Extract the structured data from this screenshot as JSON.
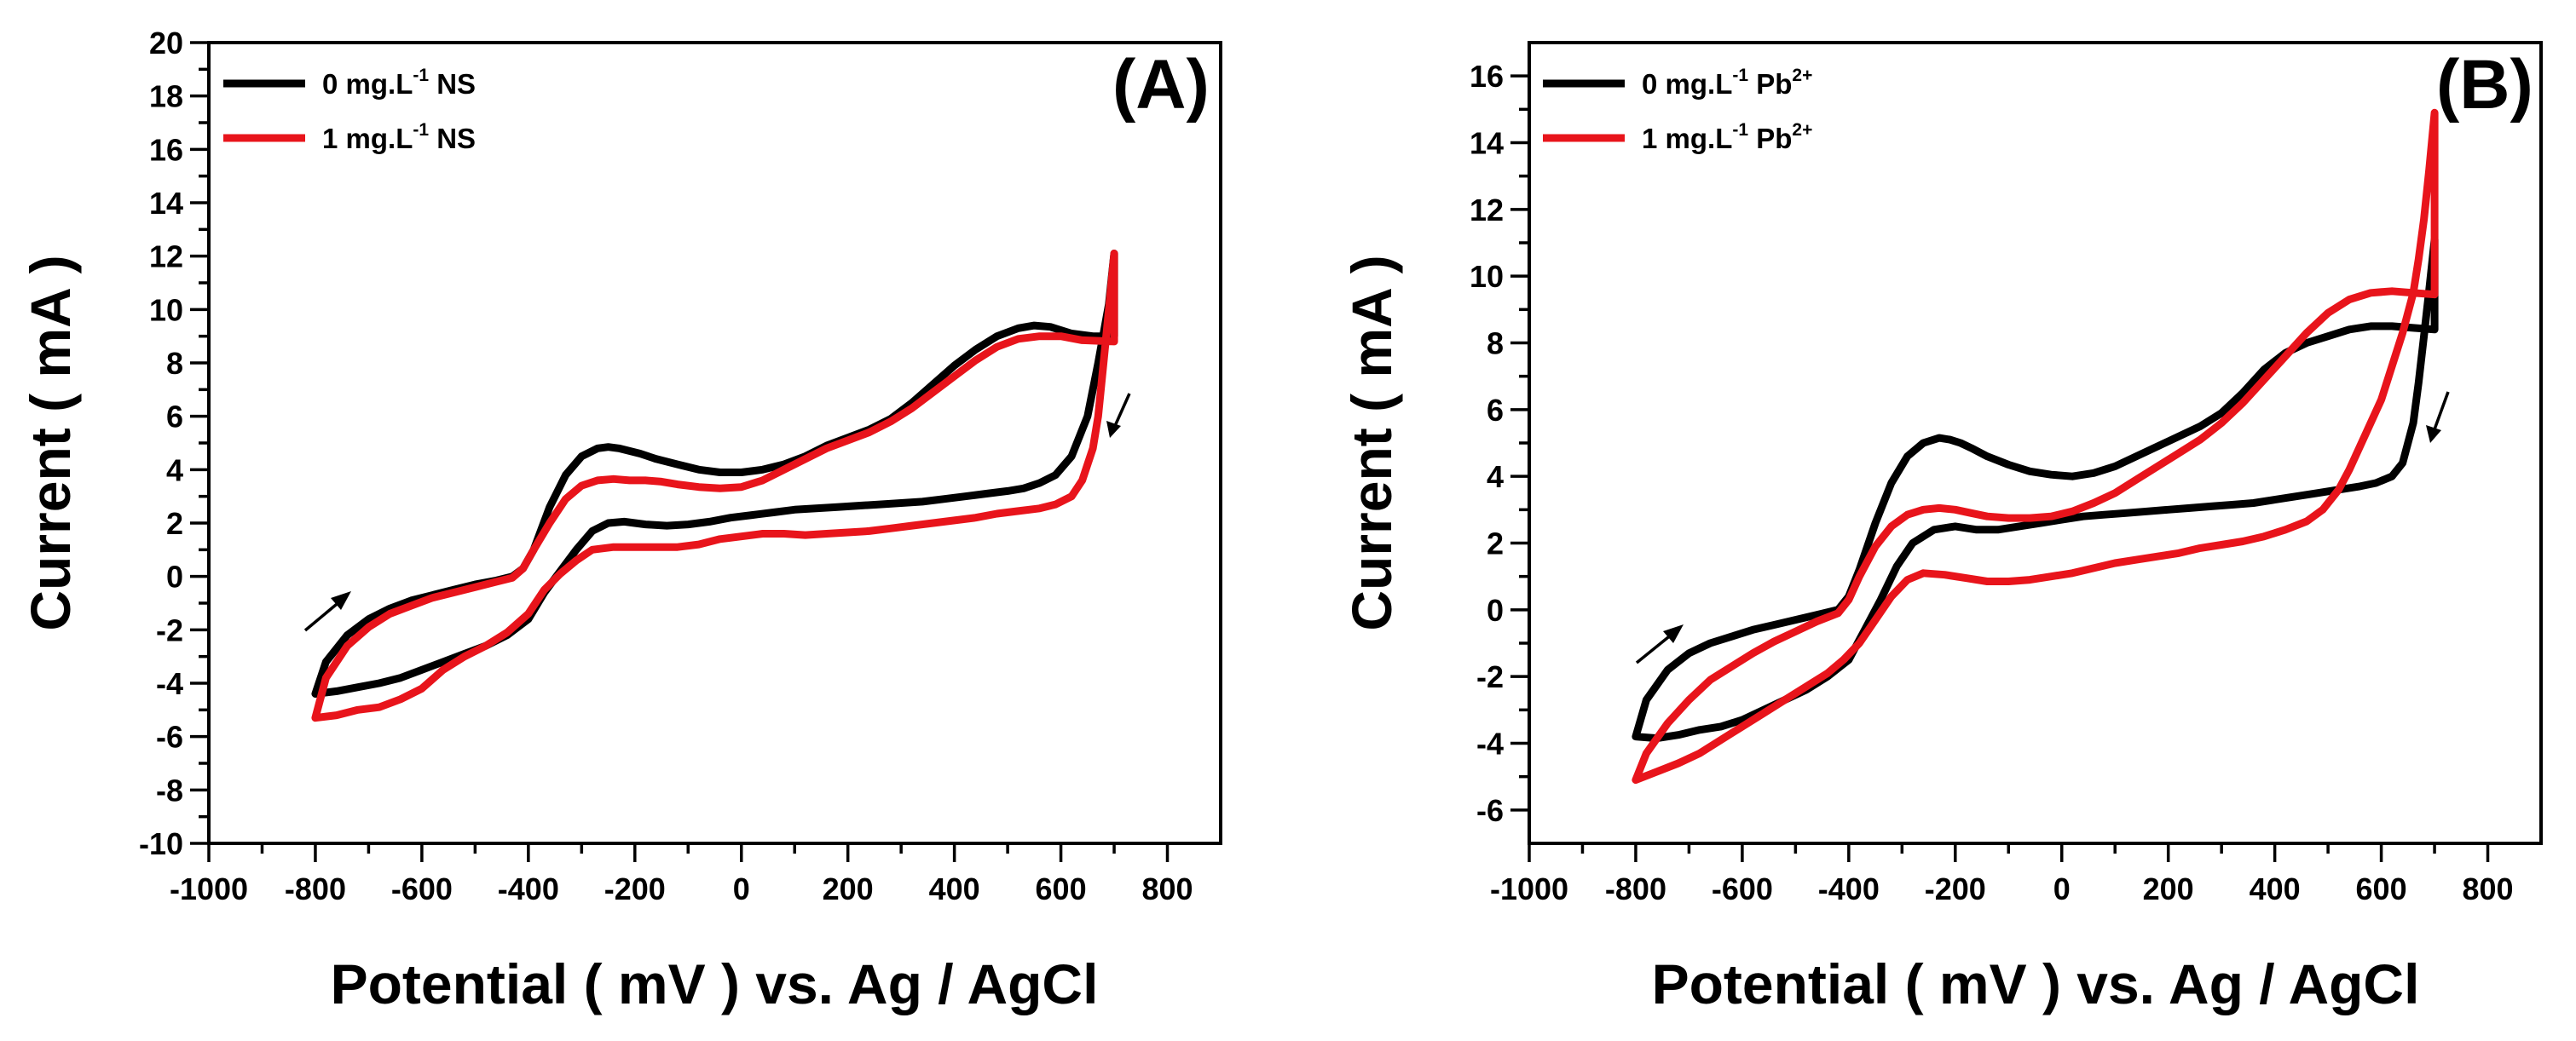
{
  "colors": {
    "series_0": "#000000",
    "series_1": "#e8141b"
  },
  "chart_data": [
    {
      "type": "line",
      "panel_label": "(A)",
      "xlabel": "Potential ( mV ) vs. Ag / AgCl",
      "ylabel": "Current ( mA )",
      "xlim": [
        -1000,
        900
      ],
      "ylim": [
        -10,
        20
      ],
      "xticks": [
        -1000,
        -800,
        -600,
        -400,
        -200,
        0,
        200,
        400,
        600,
        800
      ],
      "yticks": [
        -10,
        -8,
        -6,
        -4,
        -2,
        0,
        2,
        4,
        6,
        8,
        10,
        12,
        14,
        16,
        18,
        20
      ],
      "legend_position": "top-left",
      "series": [
        {
          "name": "0 mg.L-1 NS",
          "legend": {
            "prefix": "0  mg.L",
            "sup": "-1",
            "suffix": " NS"
          },
          "color": "#000000",
          "x": [
            -800,
            -780,
            -740,
            -700,
            -660,
            -620,
            -580,
            -540,
            -500,
            -460,
            -430,
            -410,
            -390,
            -360,
            -330,
            -300,
            -270,
            -250,
            -230,
            -210,
            -190,
            -160,
            -120,
            -80,
            -40,
            0,
            40,
            80,
            120,
            160,
            200,
            240,
            280,
            320,
            360,
            400,
            440,
            480,
            520,
            550,
            580,
            620,
            660,
            700,
            700,
            690,
            670,
            650,
            620,
            590,
            560,
            530,
            500,
            460,
            420,
            380,
            340,
            300,
            260,
            220,
            180,
            140,
            100,
            60,
            20,
            -20,
            -60,
            -100,
            -140,
            -180,
            -220,
            -250,
            -280,
            -310,
            -340,
            -370,
            -400,
            -440,
            -480,
            -520,
            -560,
            -600,
            -640,
            -680,
            -720,
            -760,
            -800
          ],
          "y": [
            -4.4,
            -3.2,
            -2.2,
            -1.6,
            -1.2,
            -0.9,
            -0.7,
            -0.5,
            -0.3,
            -0.15,
            0.0,
            0.3,
            1.0,
            2.6,
            3.8,
            4.5,
            4.8,
            4.85,
            4.8,
            4.7,
            4.6,
            4.4,
            4.2,
            4.0,
            3.9,
            3.9,
            4.0,
            4.2,
            4.5,
            4.9,
            5.2,
            5.5,
            5.9,
            6.5,
            7.2,
            7.9,
            8.5,
            9.0,
            9.3,
            9.4,
            9.35,
            9.1,
            9.0,
            9.0,
            12.1,
            10.2,
            8.0,
            6.0,
            4.5,
            3.8,
            3.5,
            3.3,
            3.2,
            3.1,
            3.0,
            2.9,
            2.8,
            2.75,
            2.7,
            2.65,
            2.6,
            2.55,
            2.5,
            2.4,
            2.3,
            2.2,
            2.05,
            1.95,
            1.9,
            1.95,
            2.05,
            2.0,
            1.7,
            1.0,
            0.2,
            -0.6,
            -1.6,
            -2.2,
            -2.6,
            -2.9,
            -3.2,
            -3.5,
            -3.8,
            -4.0,
            -4.15,
            -4.3,
            -4.4
          ]
        },
        {
          "name": "1 mg.L-1 NS",
          "legend": {
            "prefix": "1 mg.L",
            "sup": "-1",
            "suffix": " NS"
          },
          "color": "#e8141b",
          "x": [
            -800,
            -780,
            -740,
            -700,
            -660,
            -620,
            -580,
            -540,
            -500,
            -460,
            -430,
            -410,
            -390,
            -360,
            -330,
            -300,
            -270,
            -240,
            -210,
            -180,
            -150,
            -120,
            -80,
            -40,
            0,
            40,
            80,
            120,
            160,
            200,
            240,
            280,
            320,
            360,
            400,
            440,
            480,
            520,
            560,
            600,
            640,
            700,
            700,
            690,
            680,
            670,
            660,
            640,
            620,
            590,
            560,
            520,
            480,
            440,
            400,
            360,
            320,
            280,
            240,
            200,
            160,
            120,
            80,
            40,
            0,
            -40,
            -80,
            -120,
            -160,
            -200,
            -240,
            -280,
            -310,
            -340,
            -370,
            -400,
            -440,
            -480,
            -520,
            -560,
            -600,
            -640,
            -680,
            -720,
            -760,
            -800
          ],
          "y": [
            -5.3,
            -3.8,
            -2.6,
            -1.9,
            -1.4,
            -1.1,
            -0.8,
            -0.6,
            -0.4,
            -0.2,
            -0.05,
            0.3,
            1.0,
            2.0,
            2.9,
            3.4,
            3.6,
            3.65,
            3.6,
            3.6,
            3.55,
            3.45,
            3.35,
            3.3,
            3.35,
            3.6,
            4.0,
            4.4,
            4.8,
            5.1,
            5.4,
            5.8,
            6.3,
            6.9,
            7.5,
            8.1,
            8.6,
            8.9,
            9.0,
            9.0,
            8.85,
            8.8,
            12.1,
            10.0,
            8.0,
            6.0,
            4.8,
            3.6,
            3.0,
            2.7,
            2.55,
            2.45,
            2.35,
            2.2,
            2.1,
            2.0,
            1.9,
            1.8,
            1.7,
            1.65,
            1.6,
            1.55,
            1.6,
            1.6,
            1.5,
            1.4,
            1.2,
            1.1,
            1.1,
            1.1,
            1.1,
            1.0,
            0.6,
            0.1,
            -0.5,
            -1.4,
            -2.1,
            -2.6,
            -3.0,
            -3.5,
            -4.2,
            -4.6,
            -4.9,
            -5.0,
            -5.2,
            -5.3
          ]
        }
      ]
    },
    {
      "type": "line",
      "panel_label": "(B)",
      "xlabel": "Potential ( mV ) vs. Ag / AgCl",
      "ylabel": "Current ( mA )",
      "xlim": [
        -1000,
        900
      ],
      "ylim": [
        -7,
        17
      ],
      "xticks": [
        -1000,
        -800,
        -600,
        -400,
        -200,
        0,
        200,
        400,
        600,
        800
      ],
      "yticks": [
        -6,
        -4,
        -2,
        0,
        2,
        4,
        6,
        8,
        10,
        12,
        14,
        16
      ],
      "legend_position": "top-left",
      "series": [
        {
          "name": "0 mg.L-1 Pb2+",
          "legend": {
            "prefix": "0  mg.L",
            "sup": "-1",
            "suffix": " Pb",
            "sup2": "2+"
          },
          "color": "#000000",
          "x": [
            -800,
            -780,
            -740,
            -700,
            -660,
            -620,
            -580,
            -540,
            -500,
            -460,
            -420,
            -400,
            -380,
            -350,
            -320,
            -290,
            -260,
            -230,
            -210,
            -190,
            -170,
            -140,
            -100,
            -60,
            -20,
            20,
            60,
            100,
            140,
            180,
            220,
            260,
            300,
            340,
            380,
            420,
            460,
            500,
            540,
            580,
            620,
            660,
            700,
            700,
            690,
            680,
            670,
            660,
            640,
            620,
            590,
            560,
            520,
            480,
            440,
            400,
            360,
            320,
            280,
            240,
            200,
            160,
            120,
            80,
            40,
            0,
            -40,
            -80,
            -120,
            -160,
            -200,
            -240,
            -280,
            -310,
            -340,
            -370,
            -400,
            -440,
            -480,
            -520,
            -560,
            -600,
            -640,
            -680,
            -720,
            -760,
            -800
          ],
          "y": [
            -3.8,
            -2.7,
            -1.8,
            -1.3,
            -1.0,
            -0.8,
            -0.6,
            -0.45,
            -0.3,
            -0.15,
            0.0,
            0.4,
            1.2,
            2.6,
            3.8,
            4.6,
            5.0,
            5.15,
            5.1,
            5.0,
            4.85,
            4.6,
            4.35,
            4.15,
            4.05,
            4.0,
            4.1,
            4.3,
            4.6,
            4.9,
            5.2,
            5.5,
            5.9,
            6.5,
            7.2,
            7.7,
            8.0,
            8.2,
            8.4,
            8.5,
            8.5,
            8.45,
            8.4,
            11.1,
            9.6,
            8.2,
            6.8,
            5.6,
            4.4,
            4.0,
            3.8,
            3.7,
            3.6,
            3.5,
            3.4,
            3.3,
            3.2,
            3.15,
            3.1,
            3.05,
            3.0,
            2.95,
            2.9,
            2.85,
            2.8,
            2.7,
            2.6,
            2.5,
            2.4,
            2.4,
            2.5,
            2.4,
            2.0,
            1.3,
            0.3,
            -0.6,
            -1.5,
            -2.0,
            -2.4,
            -2.7,
            -3.0,
            -3.3,
            -3.5,
            -3.6,
            -3.75,
            -3.85,
            -3.8
          ]
        },
        {
          "name": "1 mg.L-1 Pb2+",
          "legend": {
            "prefix": "1 mg.L",
            "sup": "-1",
            "suffix": " Pb",
            "sup2": "2+"
          },
          "color": "#e8141b",
          "x": [
            -800,
            -780,
            -740,
            -700,
            -660,
            -620,
            -580,
            -540,
            -500,
            -460,
            -420,
            -400,
            -380,
            -350,
            -320,
            -290,
            -260,
            -230,
            -200,
            -170,
            -140,
            -100,
            -60,
            -20,
            20,
            60,
            100,
            140,
            180,
            220,
            260,
            300,
            340,
            380,
            420,
            460,
            500,
            540,
            580,
            620,
            660,
            700,
            700,
            690,
            680,
            670,
            660,
            640,
            620,
            600,
            580,
            560,
            540,
            520,
            490,
            460,
            420,
            380,
            340,
            300,
            260,
            220,
            180,
            140,
            100,
            60,
            20,
            -20,
            -60,
            -100,
            -140,
            -180,
            -220,
            -260,
            -290,
            -320,
            -350,
            -380,
            -410,
            -440,
            -480,
            -520,
            -560,
            -600,
            -640,
            -680,
            -720,
            -760,
            -800
          ],
          "y": [
            -5.1,
            -4.3,
            -3.4,
            -2.7,
            -2.1,
            -1.7,
            -1.3,
            -0.95,
            -0.65,
            -0.35,
            -0.1,
            0.3,
            1.0,
            1.9,
            2.5,
            2.85,
            3.0,
            3.05,
            3.0,
            2.9,
            2.8,
            2.75,
            2.75,
            2.8,
            2.95,
            3.2,
            3.5,
            3.9,
            4.3,
            4.7,
            5.1,
            5.6,
            6.2,
            6.9,
            7.6,
            8.3,
            8.9,
            9.3,
            9.5,
            9.55,
            9.5,
            9.45,
            14.9,
            13.2,
            11.7,
            10.5,
            9.5,
            8.3,
            7.3,
            6.3,
            5.6,
            4.9,
            4.2,
            3.6,
            3.0,
            2.65,
            2.4,
            2.2,
            2.05,
            1.95,
            1.85,
            1.7,
            1.6,
            1.5,
            1.4,
            1.25,
            1.1,
            1.0,
            0.9,
            0.85,
            0.85,
            0.95,
            1.05,
            1.1,
            0.9,
            0.4,
            -0.3,
            -1.0,
            -1.5,
            -1.9,
            -2.3,
            -2.7,
            -3.1,
            -3.5,
            -3.9,
            -4.3,
            -4.6,
            -4.85,
            -5.1
          ]
        }
      ]
    }
  ]
}
